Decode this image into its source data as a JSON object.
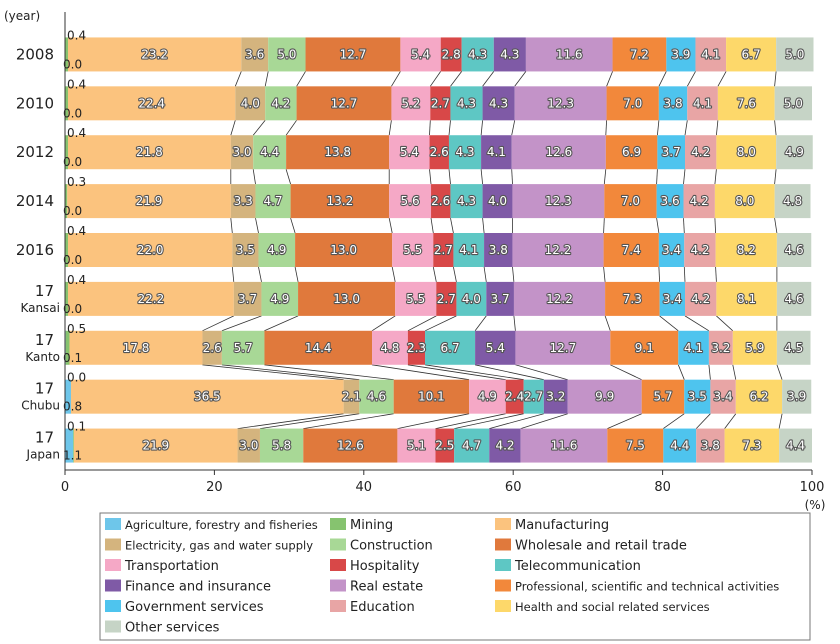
{
  "chart_data": {
    "type": "bar",
    "orientation": "horizontal",
    "stacked": true,
    "ylabel": "(year)",
    "xunit": "(%)",
    "xlim": [
      0,
      100
    ],
    "xticks": [
      0,
      20,
      40,
      60,
      80,
      100
    ],
    "grid": false,
    "legend_position": "bottom",
    "categories": [
      {
        "label": "2008",
        "sub": ""
      },
      {
        "label": "2010",
        "sub": ""
      },
      {
        "label": "2012",
        "sub": ""
      },
      {
        "label": "2014",
        "sub": ""
      },
      {
        "label": "2016",
        "sub": ""
      },
      {
        "label": "17",
        "sub": "Kansai"
      },
      {
        "label": "17",
        "sub": "Kanto"
      },
      {
        "label": "17",
        "sub": "Chubu"
      },
      {
        "label": "17",
        "sub": "Japan"
      }
    ],
    "series": [
      {
        "name": "Agriculture, forestry and fisheries",
        "color": "#6ec6ea",
        "values": [
          0.0,
          0.0,
          0.0,
          0.0,
          0.0,
          0.0,
          0.1,
          0.8,
          1.1
        ]
      },
      {
        "name": "Mining",
        "color": "#86c36f",
        "values": [
          0.4,
          0.4,
          0.4,
          0.3,
          0.4,
          0.4,
          0.5,
          0.0,
          0.1
        ]
      },
      {
        "name": "Manufacturing",
        "color": "#fbc37e",
        "values": [
          23.2,
          22.4,
          21.8,
          21.9,
          22.0,
          22.2,
          17.8,
          36.5,
          21.9
        ]
      },
      {
        "name": "Electricity, gas and water supply",
        "color": "#d4b47e",
        "values": [
          3.6,
          4.0,
          3.0,
          3.3,
          3.5,
          3.7,
          2.6,
          2.1,
          3.0
        ]
      },
      {
        "name": "Construction",
        "color": "#a8d896",
        "values": [
          5.0,
          4.2,
          4.4,
          4.7,
          4.9,
          4.9,
          5.7,
          4.6,
          5.8
        ]
      },
      {
        "name": "Wholesale and retail trade",
        "color": "#e0793c",
        "values": [
          12.7,
          12.7,
          13.8,
          13.2,
          13.0,
          13.0,
          14.4,
          10.1,
          12.6
        ]
      },
      {
        "name": "Transportation",
        "color": "#f5a8c6",
        "values": [
          5.4,
          5.2,
          5.4,
          5.6,
          5.5,
          5.5,
          4.8,
          4.9,
          5.1
        ]
      },
      {
        "name": "Hospitality",
        "color": "#d84848",
        "values": [
          2.8,
          2.7,
          2.6,
          2.6,
          2.7,
          2.7,
          2.3,
          2.4,
          2.5
        ]
      },
      {
        "name": "Telecommunication",
        "color": "#5ec7c4",
        "values": [
          4.3,
          4.3,
          4.3,
          4.3,
          4.1,
          4.0,
          6.7,
          2.7,
          4.7
        ]
      },
      {
        "name": "Finance and insurance",
        "color": "#7f5aa6",
        "values": [
          4.3,
          4.3,
          4.1,
          4.0,
          3.8,
          3.7,
          5.4,
          3.2,
          4.2
        ]
      },
      {
        "name": "Real estate",
        "color": "#c393c8",
        "values": [
          11.6,
          12.3,
          12.6,
          12.3,
          12.2,
          12.2,
          12.7,
          9.9,
          11.6
        ]
      },
      {
        "name": "Professional, scientific and technical activities",
        "color": "#f2883b",
        "values": [
          7.2,
          7.0,
          6.9,
          7.0,
          7.4,
          7.3,
          9.1,
          5.7,
          7.5
        ]
      },
      {
        "name": "Government services",
        "color": "#4ec4ee",
        "values": [
          3.9,
          3.8,
          3.7,
          3.6,
          3.4,
          3.4,
          4.1,
          3.5,
          4.4
        ]
      },
      {
        "name": "Education",
        "color": "#e8a5a5",
        "values": [
          4.1,
          4.1,
          4.2,
          4.2,
          4.2,
          4.2,
          3.2,
          3.4,
          3.8
        ]
      },
      {
        "name": "Health and social related services",
        "color": "#fdd86a",
        "values": [
          6.7,
          7.6,
          8.0,
          8.0,
          8.2,
          8.1,
          5.9,
          6.2,
          7.3
        ]
      },
      {
        "name": "Other services",
        "color": "#c6d4c6",
        "values": [
          5.0,
          5.0,
          4.9,
          4.8,
          4.6,
          4.6,
          4.5,
          3.9,
          4.4
        ]
      }
    ]
  }
}
